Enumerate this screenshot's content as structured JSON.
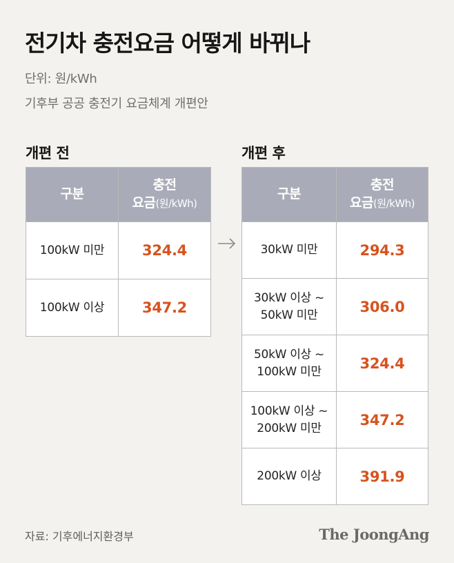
{
  "title": "전기차 충전요금 어떻게 바뀌나",
  "unit": "단위: 원/kWh",
  "description": "기후부 공공 충전기 요금체계 개편안",
  "before": {
    "label": "개편 전",
    "header": {
      "col1": "구분",
      "col2_line1": "충전",
      "col2_line2_main": "요금",
      "col2_line2_unit": "(원/kWh)"
    },
    "rows": [
      {
        "category": "100kW 미만",
        "price": "324.4"
      },
      {
        "category": "100kW 이상",
        "price": "347.2"
      }
    ]
  },
  "after": {
    "label": "개편 후",
    "header": {
      "col1": "구분",
      "col2_line1": "충전",
      "col2_line2_main": "요금",
      "col2_line2_unit": "(원/kWh)"
    },
    "rows": [
      {
        "category_line1": "30kW 미만",
        "category_line2": "",
        "price": "294.3"
      },
      {
        "category_line1": "30kW 이상 ~",
        "category_line2": "50kW 미만",
        "price": "306.0"
      },
      {
        "category_line1": "50kW 이상 ~",
        "category_line2": "100kW 미만",
        "price": "324.4"
      },
      {
        "category_line1": "100kW 이상 ~",
        "category_line2": "200kW 미만",
        "price": "347.2"
      },
      {
        "category_line1": "200kW 이상",
        "category_line2": "",
        "price": "391.9"
      }
    ]
  },
  "source": "자료: 기후에너지환경부",
  "logo": "The JoongAng",
  "colors": {
    "accent": "#d7531f",
    "header_bg": "#a9abb8",
    "background": "#f4f2ee"
  },
  "icons": {
    "arrow": "arrow-right-icon"
  }
}
